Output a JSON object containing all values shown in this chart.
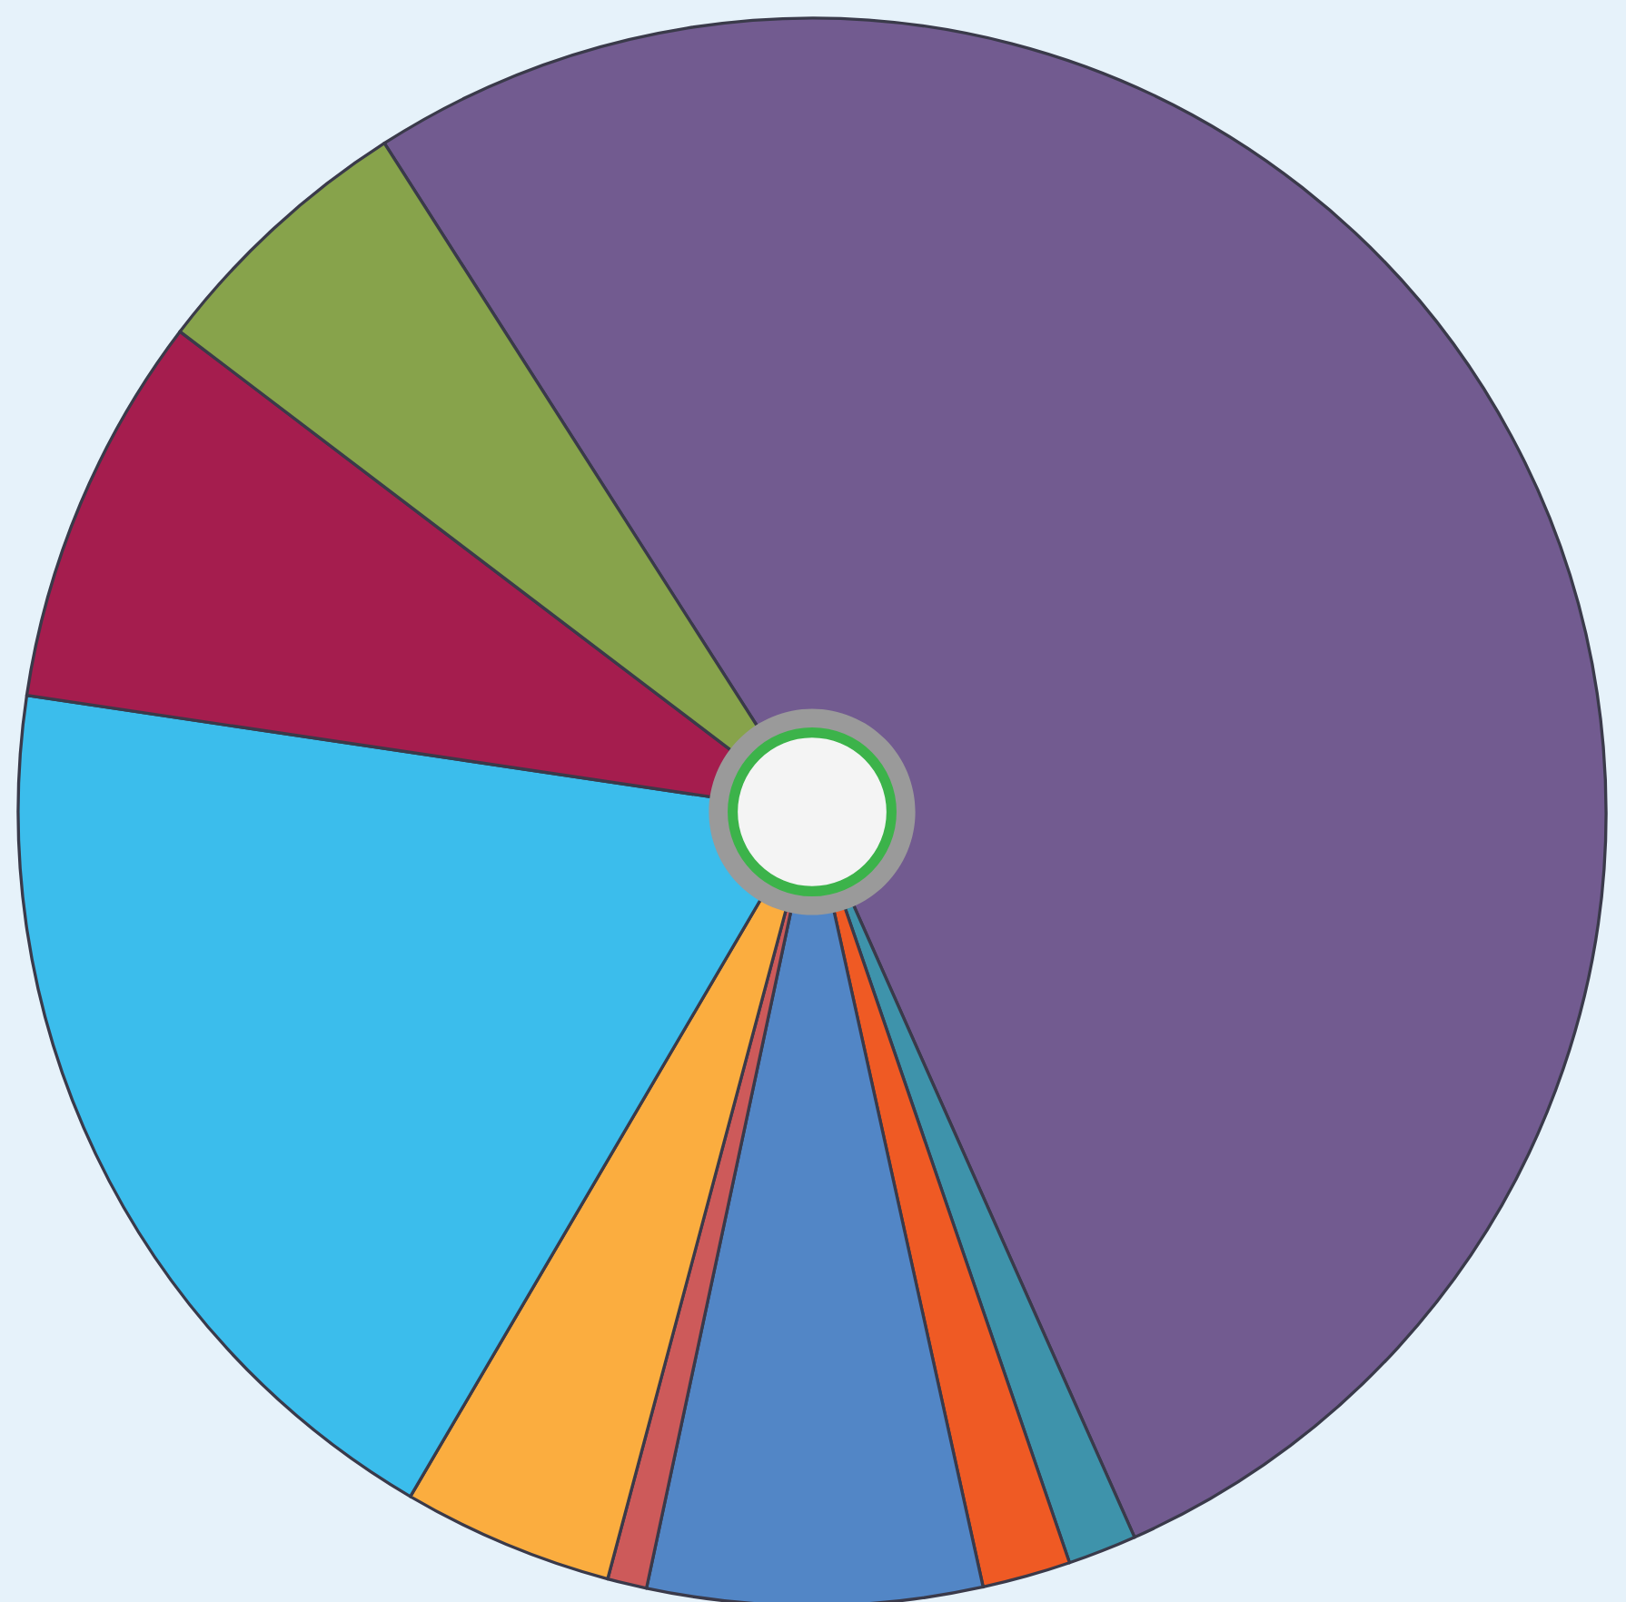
{
  "chart_data": {
    "type": "pie",
    "categories": [
      null,
      null,
      null,
      null,
      null,
      null,
      null,
      null,
      null
    ],
    "values": [
      52.4,
      1.4,
      1.8,
      6.8,
      0.8,
      4.3,
      18.9,
      8.0,
      5.6
    ],
    "colors": [
      "#725b90",
      "#3e93ab",
      "#ef5a24",
      "#5286c6",
      "#cd5a5a",
      "#fbad3f",
      "#3bbdec",
      "#a51d4e",
      "#87a34b"
    ],
    "legend": false
  }
}
